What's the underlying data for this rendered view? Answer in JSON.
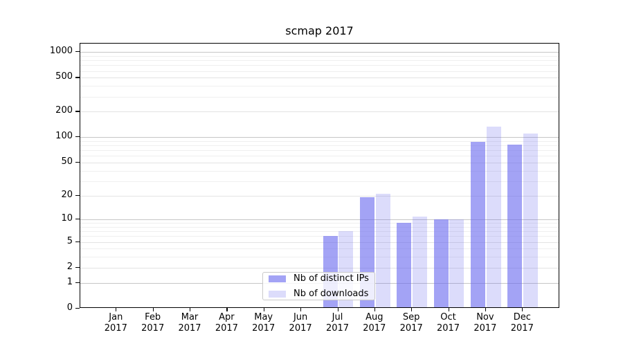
{
  "chart": {
    "title": "scmap 2017",
    "legend": {
      "entries": [
        "Nb of distinct IPs",
        "Nb of downloads"
      ],
      "position": "lower-center-left"
    }
  },
  "chart_data": {
    "type": "bar",
    "title": "scmap 2017",
    "categories": [
      "Jan",
      "Feb",
      "Mar",
      "Apr",
      "May",
      "Jun",
      "Jul",
      "Aug",
      "Sep",
      "Oct",
      "Nov",
      "Dec"
    ],
    "x_tick_second_line": "2017",
    "series": [
      {
        "name": "Nb of distinct IPs",
        "color": "rgba(102,102,238,0.60)",
        "values": [
          0,
          0,
          0,
          0,
          0,
          0,
          6,
          19,
          9,
          10,
          88,
          82
        ]
      },
      {
        "name": "Nb of downloads",
        "color": "rgba(102,102,238,0.23)",
        "values": [
          0,
          0,
          0,
          0,
          0,
          0,
          7,
          21,
          11,
          10,
          134,
          110
        ]
      }
    ],
    "xlabel": "",
    "ylabel": "",
    "y_axis": {
      "scale": "log1p",
      "tick_values": [
        0,
        1,
        2,
        5,
        10,
        20,
        50,
        100,
        200,
        500,
        1000
      ],
      "minor_gridline_values": [
        3,
        4,
        6,
        7,
        8,
        9,
        30,
        40,
        60,
        70,
        80,
        90,
        300,
        400,
        600,
        700,
        800,
        900
      ],
      "emphasized_gridline_values": [
        1,
        10,
        100,
        1000
      ],
      "ylim_labeled": [
        0,
        1000
      ]
    },
    "grid": true,
    "legend_position": "lower center-left inside plot",
    "colors": {
      "bar_base": "#6666ee",
      "grid_major": "#c6c6c6",
      "grid_light": "#e3e3e3",
      "grid_minor": "#efefef",
      "axis": "#000000",
      "background": "#ffffff"
    }
  }
}
